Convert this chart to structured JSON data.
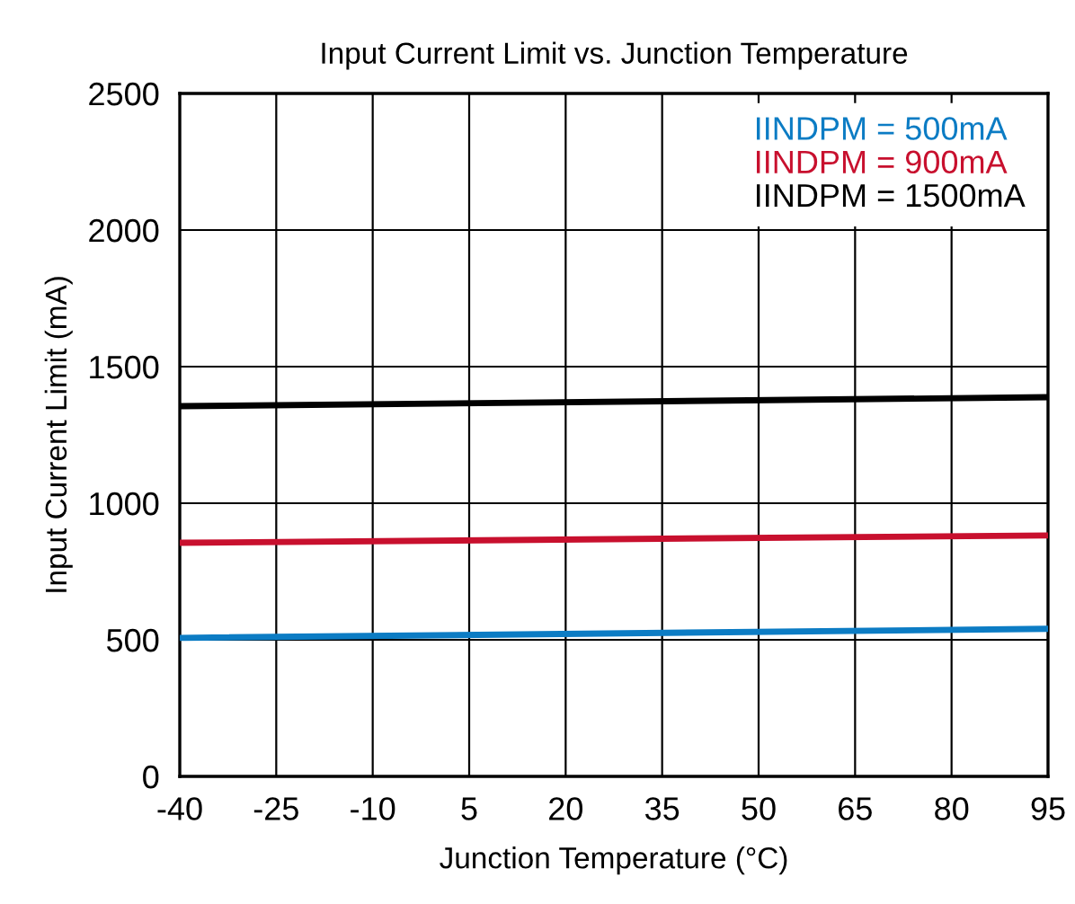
{
  "chart_data": {
    "type": "line",
    "title": "Input Current Limit vs. Junction Temperature",
    "xlabel": "Junction Temperature (°C)",
    "ylabel": "Input Current Limit (mA)",
    "x": [
      -40,
      95
    ],
    "series": [
      {
        "name": "IINDPM = 500mA",
        "color": "#0c7cc4",
        "values": [
          507,
          540
        ]
      },
      {
        "name": "IINDPM = 900mA",
        "color": "#c8102e",
        "values": [
          855,
          882
        ]
      },
      {
        "name": "IINDPM = 1500mA",
        "color": "#000000",
        "values": [
          1355,
          1388
        ]
      }
    ],
    "xlim": [
      -40,
      95
    ],
    "xticks": [
      -40,
      -25,
      -10,
      5,
      20,
      35,
      50,
      65,
      80,
      95
    ],
    "ylim": [
      0,
      2500
    ],
    "yticks": [
      0,
      500,
      1000,
      1500,
      2000,
      2500
    ],
    "grid": true,
    "legend": "top right",
    "marker": "none",
    "line_style": "solid"
  }
}
